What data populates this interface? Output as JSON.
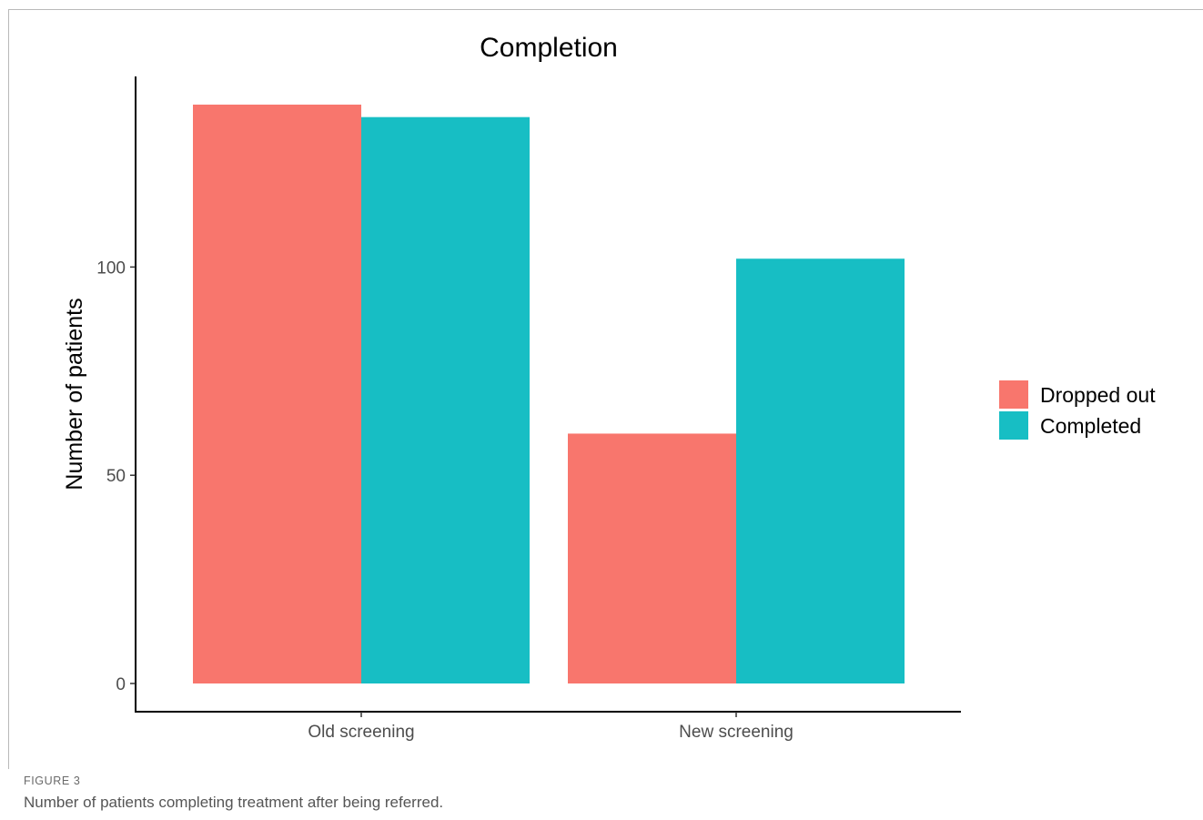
{
  "figure": {
    "label": "FIGURE 3",
    "caption": "Number of patients completing treatment after being referred."
  },
  "chart_data": {
    "type": "bar",
    "title": "Completion",
    "xlabel": "",
    "ylabel": "Number of patients",
    "categories": [
      "Old screening",
      "New screening"
    ],
    "series": [
      {
        "name": "Dropped out",
        "color": "#F8766D",
        "values": [
          139,
          60
        ]
      },
      {
        "name": "Completed",
        "color": "#17BEC4",
        "values": [
          136,
          102
        ]
      }
    ],
    "ylim": [
      0,
      139
    ],
    "yticks": [
      0,
      50,
      100
    ],
    "grid": false,
    "legend_position": "right"
  }
}
